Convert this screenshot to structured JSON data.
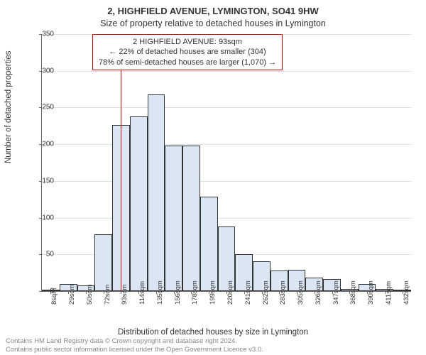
{
  "titles": {
    "main": "2, HIGHFIELD AVENUE, LYMINGTON, SO41 9HW",
    "sub": "Size of property relative to detached houses in Lymington"
  },
  "annotation": {
    "line1": "2 HIGHFIELD AVENUE: 93sqm",
    "line2": "← 22% of detached houses are smaller (304)",
    "line3": "78% of semi-detached houses are larger (1,070) →",
    "border_color": "#cc0000"
  },
  "axes": {
    "ylabel": "Number of detached properties",
    "xlabel": "Distribution of detached houses by size in Lymington",
    "ylim": [
      0,
      350
    ],
    "ytick_step": 50,
    "yticks": [
      0,
      50,
      100,
      150,
      200,
      250,
      300,
      350
    ],
    "xticks": [
      "8sqm",
      "29sqm",
      "50sqm",
      "72sqm",
      "93sqm",
      "114sqm",
      "135sqm",
      "156sqm",
      "178sqm",
      "199sqm",
      "220sqm",
      "241sqm",
      "262sqm",
      "283sqm",
      "305sqm",
      "326sqm",
      "347sqm",
      "368sqm",
      "390sqm",
      "411sqm",
      "432sqm"
    ]
  },
  "chart": {
    "type": "histogram",
    "values": [
      1,
      10,
      8,
      77,
      226,
      238,
      268,
      198,
      198,
      129,
      88,
      50,
      41,
      28,
      29,
      18,
      16,
      3,
      10,
      3,
      2
    ],
    "bar_fill": "#dbe6f4",
    "bar_stroke": "#333333",
    "bar_width_ratio": 1.0,
    "marker_position_index": 4,
    "marker_color": "#cc0000",
    "background_color": "#ffffff",
    "grid_color": "#e0e0e0",
    "tick_fontsize": 10,
    "label_fontsize": 11.5,
    "title_fontsize": 13
  },
  "footer": {
    "line1": "Contains HM Land Registry data © Crown copyright and database right 2024.",
    "line2": "Contains public sector information licensed under the Open Government Licence v3.0."
  }
}
